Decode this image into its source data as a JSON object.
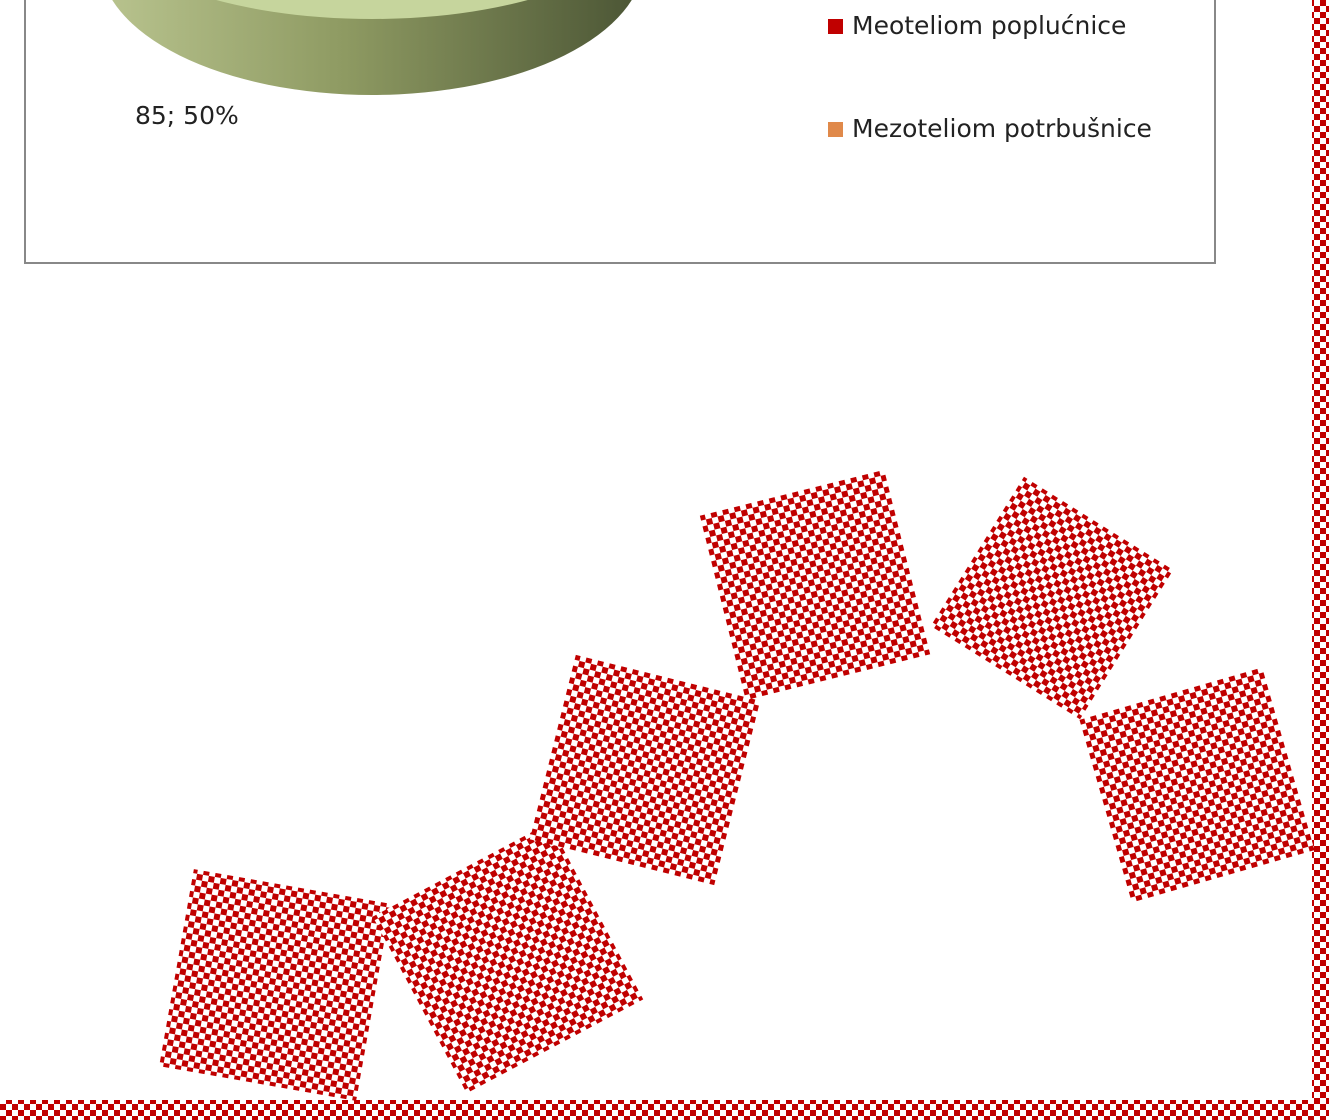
{
  "chart": {
    "data_label": "85; 50%",
    "legend": [
      "Meoteliom poplućnice",
      "Mezoteliom potrbušnice"
    ]
  }
}
